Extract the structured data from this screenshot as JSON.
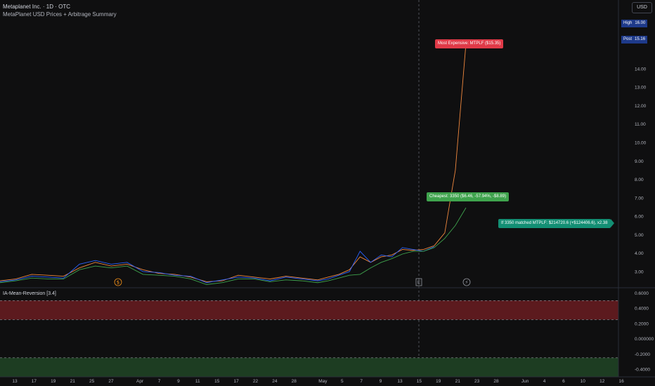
{
  "header": {
    "title": "Metaplanet Inc. · 1D · OTC",
    "subtitle": "MetaPlanet USD Prices + Arbitrage Summary",
    "currency": "USD"
  },
  "badges": {
    "high": {
      "label": "High",
      "value": "16.00",
      "color": "#1e3a8a"
    },
    "post": {
      "label": "Post",
      "value": "15.16",
      "color": "#1e3a8a"
    }
  },
  "annotations": {
    "most_expensive": {
      "text": "Most Expensive: MTPLF ($15.35)",
      "color": "#e03a48"
    },
    "cheapest": {
      "text": "Cheapest: 3350 ($6.46, -57.94%, -$8.89)",
      "color": "#3fa34d"
    },
    "matched": {
      "text": "If 3350 matched MTPLF: $214720.6 (+$124406.6), x2.38",
      "color": "#138f74"
    }
  },
  "event_markers": [
    {
      "glyph": "$",
      "color": "#f7931a",
      "date": "Mar 29"
    },
    {
      "glyph": "E",
      "color": "#9598a1",
      "date": "May 14"
    },
    {
      "glyph": "⚡",
      "color": "#9598a1",
      "date": "May 21"
    }
  ],
  "indicator": {
    "name": "IA-Mean-Reversion [3.4]"
  },
  "chart_data": [
    {
      "type": "line",
      "series": [
        {
          "name": "",
          "color": "#f0883e",
          "x": [
            0,
            3,
            6,
            9,
            12,
            15,
            18,
            21,
            24,
            27,
            30,
            33,
            36,
            39,
            42,
            45,
            48,
            51,
            54,
            57,
            60,
            62,
            64,
            66,
            68,
            70,
            72,
            74,
            76,
            78,
            80,
            82
          ],
          "values": [
            2.5,
            2.6,
            2.85,
            2.8,
            2.75,
            3.2,
            3.5,
            3.3,
            3.4,
            3.1,
            2.9,
            2.85,
            2.7,
            2.45,
            2.5,
            2.8,
            2.7,
            2.6,
            2.75,
            2.65,
            2.55,
            2.7,
            2.85,
            3.1,
            3.8,
            3.5,
            3.8,
            3.9,
            4.2,
            4.15,
            4.2,
            4.4
          ]
        },
        {
          "name": "",
          "color": "#2962ff",
          "x": [
            0,
            3,
            6,
            9,
            12,
            15,
            18,
            21,
            24,
            27,
            30,
            33,
            36,
            39,
            42,
            45,
            48,
            51,
            54,
            57,
            60,
            62,
            64,
            66,
            68,
            70,
            72,
            74,
            76,
            78,
            80,
            82
          ],
          "values": [
            2.45,
            2.55,
            2.75,
            2.7,
            2.65,
            3.4,
            3.6,
            3.4,
            3.5,
            3.0,
            2.95,
            2.8,
            2.75,
            2.4,
            2.55,
            2.7,
            2.65,
            2.5,
            2.7,
            2.6,
            2.5,
            2.6,
            2.8,
            3.0,
            4.1,
            3.5,
            3.9,
            3.8,
            4.3,
            4.2,
            4.1,
            4.35
          ]
        },
        {
          "name": "",
          "color": "#3fa34d",
          "x": [
            0,
            3,
            6,
            9,
            12,
            15,
            18,
            21,
            24,
            27,
            30,
            33,
            36,
            39,
            42,
            45,
            48,
            51,
            54,
            57,
            60,
            62,
            64,
            66,
            68,
            70,
            72,
            74,
            76,
            78,
            80,
            82
          ],
          "values": [
            2.4,
            2.5,
            2.65,
            2.6,
            2.6,
            3.1,
            3.3,
            3.2,
            3.3,
            2.85,
            2.8,
            2.75,
            2.6,
            2.3,
            2.4,
            2.6,
            2.6,
            2.45,
            2.55,
            2.5,
            2.4,
            2.5,
            2.65,
            2.8,
            2.85,
            3.2,
            3.5,
            3.7,
            3.95,
            4.1,
            4.1,
            4.3
          ]
        }
      ],
      "extension": {
        "x": [
          82,
          84,
          86,
          88
        ],
        "orange": [
          4.4,
          5.1,
          8.5,
          15.35
        ],
        "green": [
          4.3,
          4.8,
          5.5,
          6.46
        ]
      },
      "x_ticks": [
        {
          "label": "13",
          "x": 0
        },
        {
          "label": "17",
          "x": 2
        },
        {
          "label": "19",
          "x": 4
        },
        {
          "label": "21",
          "x": 6
        },
        {
          "label": "25",
          "x": 8
        },
        {
          "label": "27",
          "x": 10
        },
        {
          "label": "Apr",
          "x": 13
        },
        {
          "label": "7",
          "x": 15
        },
        {
          "label": "9",
          "x": 17
        },
        {
          "label": "11",
          "x": 19
        },
        {
          "label": "15",
          "x": 21
        },
        {
          "label": "17",
          "x": 23
        },
        {
          "label": "22",
          "x": 25
        },
        {
          "label": "24",
          "x": 27
        },
        {
          "label": "28",
          "x": 29
        },
        {
          "label": "May",
          "x": 32
        },
        {
          "label": "5",
          "x": 34
        },
        {
          "label": "7",
          "x": 36
        },
        {
          "label": "9",
          "x": 38
        },
        {
          "label": "13",
          "x": 40
        },
        {
          "label": "15",
          "x": 42
        },
        {
          "label": "19",
          "x": 44
        },
        {
          "label": "21",
          "x": 46
        },
        {
          "label": "23",
          "x": 48
        },
        {
          "label": "28",
          "x": 50
        },
        {
          "label": "Jun",
          "x": 53
        },
        {
          "label": "4",
          "x": 55
        },
        {
          "label": "6",
          "x": 57
        },
        {
          "label": "10",
          "x": 59
        },
        {
          "label": "12",
          "x": 61
        },
        {
          "label": "16",
          "x": 63
        }
      ],
      "y_ticks": [
        "3.00",
        "4.00",
        "5.00",
        "6.00",
        "7.00",
        "8.00",
        "9.00",
        "10.00",
        "11.00",
        "12.00",
        "13.00",
        "14.00"
      ],
      "ylim": [
        2.2,
        16.2
      ],
      "grid": false
    },
    {
      "type": "area",
      "name": "IA-Mean-Reversion [3.4]",
      "y_ticks": [
        "0.6000",
        "0.4000",
        "0.2000",
        "0.000000",
        "-0.2000",
        "-0.4000"
      ],
      "ylim": [
        -0.5,
        0.65
      ],
      "bands": [
        {
          "from": 0.25,
          "to": 0.5,
          "color": "#5c1a1e"
        },
        {
          "from": -0.5,
          "to": -0.25,
          "color": "#1d3d22"
        }
      ],
      "levels": [
        0.5,
        0.25,
        -0.25
      ]
    }
  ]
}
